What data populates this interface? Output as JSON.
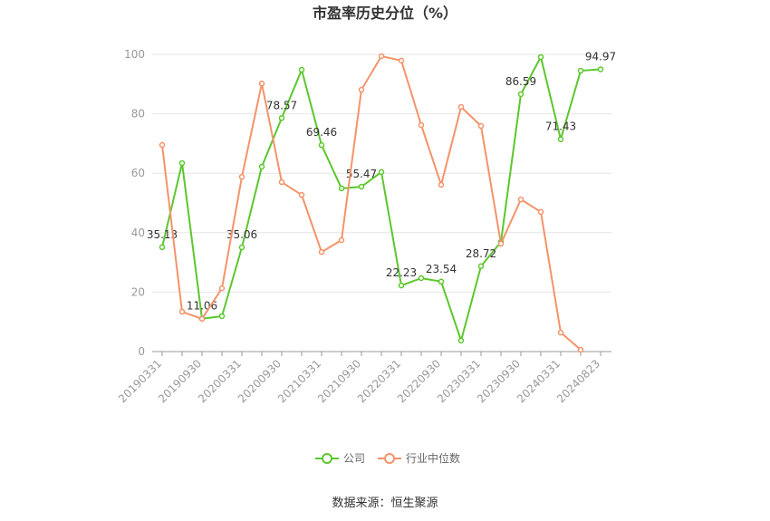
{
  "chart_data": {
    "type": "line",
    "title": "市盈率历史分位（%）",
    "source": "数据来源：恒生聚源",
    "categories": [
      "20190331",
      null,
      "20190930",
      null,
      "20200331",
      null,
      "20200930",
      null,
      "20210331",
      null,
      "20210930",
      null,
      "20220331",
      null,
      "20220930",
      null,
      "20230331",
      null,
      "20230930",
      null,
      "20240331",
      null,
      "20240823"
    ],
    "series": [
      {
        "name": "公司",
        "color": "#5cc72e",
        "values": [
          35.13,
          63.4,
          11.06,
          11.9,
          35.06,
          62.2,
          78.57,
          94.8,
          69.46,
          54.9,
          55.47,
          60.4,
          22.23,
          24.7,
          23.54,
          3.7,
          28.72,
          36.9,
          86.59,
          99.1,
          71.43,
          94.5,
          94.97
        ],
        "value_labels": [
          "35.13",
          null,
          "11.06",
          null,
          "35.06",
          null,
          "78.57",
          null,
          "69.46",
          null,
          "55.47",
          null,
          "22.23",
          null,
          "23.54",
          null,
          "28.72",
          null,
          "86.59",
          null,
          "71.43",
          null,
          "94.97"
        ]
      },
      {
        "name": "行业中位数",
        "color": "#f4936a",
        "values": [
          69.5,
          13.4,
          11,
          21.3,
          58.8,
          90.2,
          57,
          52.7,
          33.5,
          37.5,
          88.1,
          99.4,
          97.9,
          76.2,
          56.1,
          82.3,
          75.9,
          36.3,
          51.2,
          47,
          6.4,
          0.6,
          null
        ]
      }
    ],
    "ylim": [
      0,
      100
    ],
    "yticks": [
      0,
      20,
      40,
      60,
      80,
      100
    ],
    "grid": true,
    "legend": "bottom"
  }
}
